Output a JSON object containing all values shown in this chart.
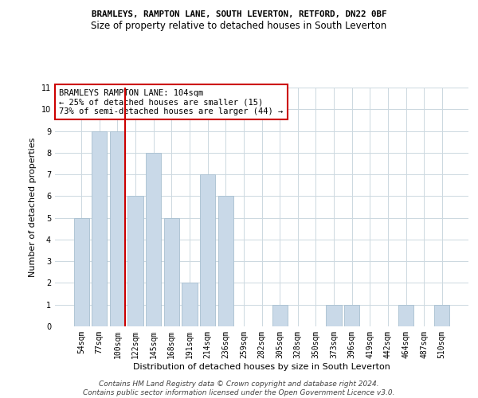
{
  "title1": "BRAMLEYS, RAMPTON LANE, SOUTH LEVERTON, RETFORD, DN22 0BF",
  "title2": "Size of property relative to detached houses in South Leverton",
  "xlabel": "Distribution of detached houses by size in South Leverton",
  "ylabel": "Number of detached properties",
  "categories": [
    "54sqm",
    "77sqm",
    "100sqm",
    "122sqm",
    "145sqm",
    "168sqm",
    "191sqm",
    "214sqm",
    "236sqm",
    "259sqm",
    "282sqm",
    "305sqm",
    "328sqm",
    "350sqm",
    "373sqm",
    "396sqm",
    "419sqm",
    "442sqm",
    "464sqm",
    "487sqm",
    "510sqm"
  ],
  "values": [
    5,
    9,
    9,
    6,
    8,
    5,
    2,
    7,
    6,
    0,
    0,
    1,
    0,
    0,
    1,
    1,
    0,
    0,
    1,
    0,
    1
  ],
  "bar_color": "#c9d9e8",
  "bar_edge_color": "#a8bfd0",
  "vline_color": "#cc0000",
  "vline_x_index": 2,
  "annotation_text": "BRAMLEYS RAMPTON LANE: 104sqm\n← 25% of detached houses are smaller (15)\n73% of semi-detached houses are larger (44) →",
  "annotation_box_color": "#ffffff",
  "annotation_box_edge": "#cc0000",
  "ylim": [
    0,
    11
  ],
  "yticks": [
    0,
    1,
    2,
    3,
    4,
    5,
    6,
    7,
    8,
    9,
    10,
    11
  ],
  "footer1": "Contains HM Land Registry data © Crown copyright and database right 2024.",
  "footer2": "Contains public sector information licensed under the Open Government Licence v3.0.",
  "bg_color": "#ffffff",
  "grid_color": "#ccd8e0",
  "title1_fontsize": 7.8,
  "title2_fontsize": 8.5,
  "axis_label_fontsize": 8,
  "tick_fontsize": 7,
  "annotation_fontsize": 7.5,
  "footer_fontsize": 6.5
}
